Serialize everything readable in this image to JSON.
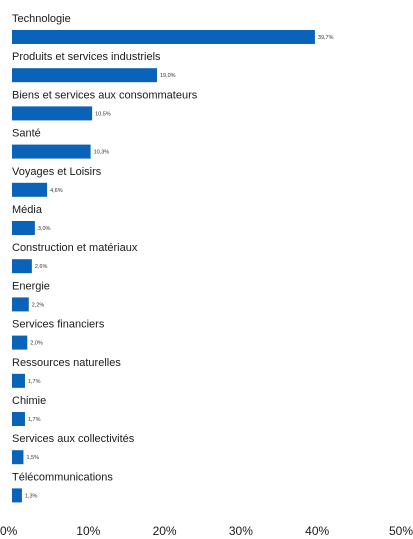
{
  "chart_data": {
    "type": "bar",
    "orientation": "horizontal",
    "categories": [
      "Technologie",
      "Produits et services industriels",
      "Biens et services aux consommateurs",
      "Santé",
      "Voyages et Loisirs",
      "Média",
      "Construction et matériaux",
      "Energie",
      "Services financiers",
      "Ressources naturelles",
      "Chimie",
      "Services aux collectivités",
      "Télécommunications"
    ],
    "values": [
      39.7,
      19.0,
      10.5,
      10.3,
      4.6,
      3.0,
      2.6,
      2.2,
      2.0,
      1.7,
      1.7,
      1.5,
      1.3
    ],
    "value_labels": [
      "39,7%",
      "19,0%",
      "10,5%",
      "10,3%",
      "4,6%",
      "3,0%",
      "2,6%",
      "2,2%",
      "2,0%",
      "1,7%",
      "1,7%",
      "1,5%",
      "1,3%"
    ],
    "x_ticks": [
      "0%",
      "10%",
      "20%",
      "30%",
      "40%",
      "50%"
    ],
    "xlim": [
      0,
      50
    ],
    "grid": false,
    "legend": "none",
    "bar_color": "#0a63b8"
  }
}
